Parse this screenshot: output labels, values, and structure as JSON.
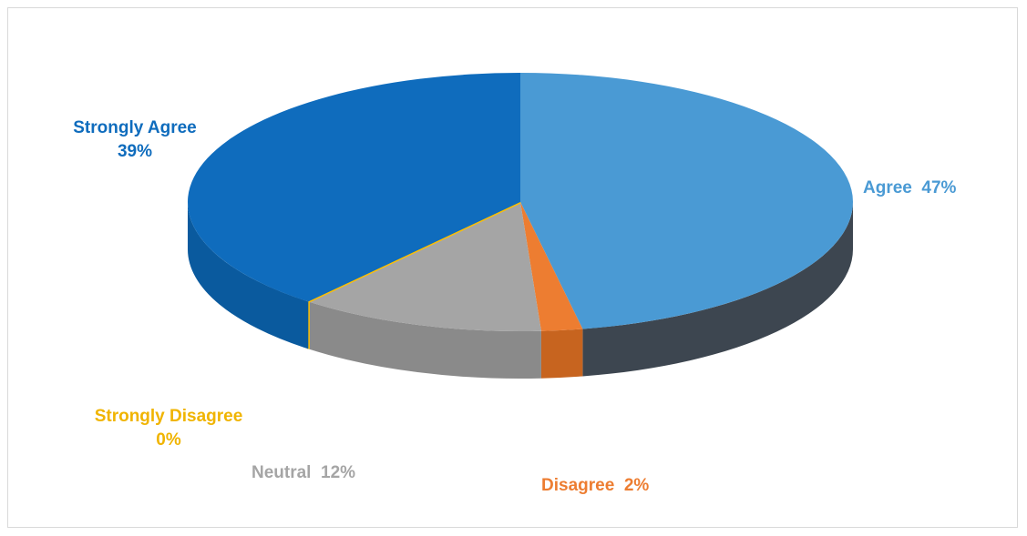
{
  "chart_data": {
    "type": "pie",
    "style": "3d",
    "slices": [
      {
        "label": "Agree",
        "value": 47,
        "percent_text": "47%",
        "color": "#4a9ad4",
        "side_color": "#3d4650"
      },
      {
        "label": "Disagree",
        "value": 2,
        "percent_text": "2%",
        "color": "#ed7d31",
        "side_color": "#c7641f"
      },
      {
        "label": "Neutral",
        "value": 12,
        "percent_text": "12%",
        "color": "#a5a5a5",
        "side_color": "#8a8a8a"
      },
      {
        "label": "Strongly Disagree",
        "value": 0,
        "percent_text": "0%",
        "color": "#ffc000",
        "side_color": "#d9a300"
      },
      {
        "label": "Strongly Agree",
        "value": 39,
        "percent_text": "39%",
        "color": "#0f6cbd",
        "side_color": "#0a5a9e"
      }
    ],
    "legend": "none",
    "data_labels": "outside"
  }
}
